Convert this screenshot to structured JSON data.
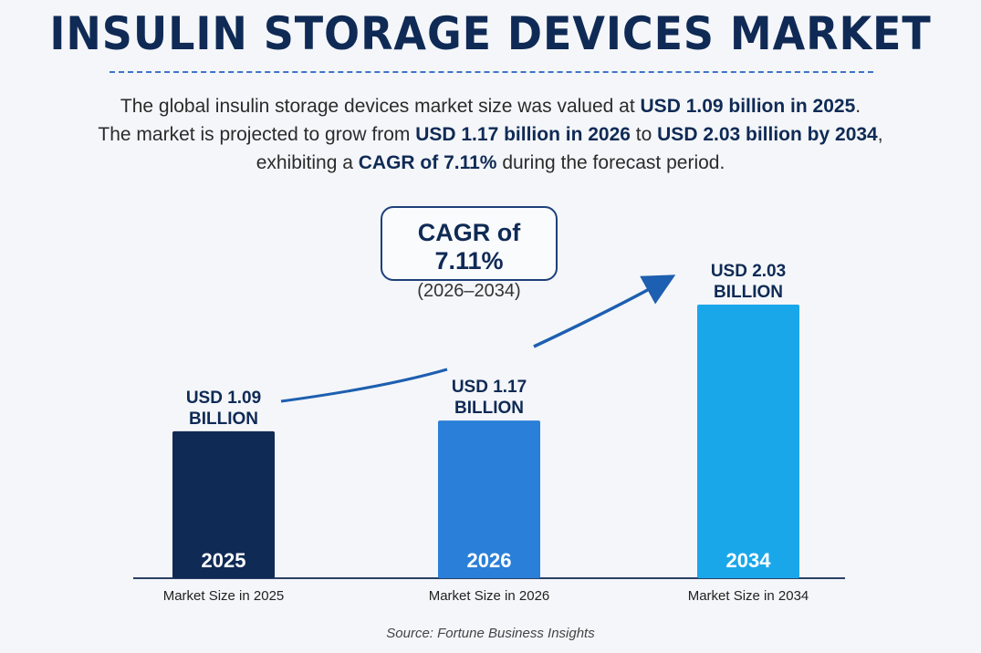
{
  "title": "INSULIN STORAGE DEVICES MARKET",
  "summary": {
    "line1_pre": "The global insulin storage devices market size was valued at ",
    "line1_bold": "USD 1.09 billion in 2025",
    "line1_post": ".",
    "line2_pre": "The market is projected to grow from ",
    "line2_bold1": "USD 1.17 billion in 2026",
    "line2_mid": " to ",
    "line2_bold2": "USD 2.03 billion by 2034",
    "line2_post": ",",
    "line3_pre": "exhibiting a ",
    "line3_bold": "CAGR of 7.11%",
    "line3_post": " during the forecast period."
  },
  "cagr_box": {
    "main": "CAGR of 7.11%",
    "sub": "(2026–2034)"
  },
  "source": "Source: Fortune Business Insights",
  "chart_data": {
    "type": "bar",
    "title": "",
    "xlabel": "",
    "ylabel": "",
    "unit": "USD billion",
    "categories": [
      "2025",
      "2026",
      "2034"
    ],
    "values": [
      1.09,
      1.17,
      2.03
    ],
    "value_labels": [
      [
        "USD 1.09",
        "BILLION"
      ],
      [
        "USD 1.17",
        "BILLION"
      ],
      [
        "USD 2.03",
        "BILLION"
      ]
    ],
    "category_captions": [
      "Market Size in 2025",
      "Market Size in 2026",
      "Market Size in 2034"
    ],
    "colors": [
      "#0f2a55",
      "#2a7fd8",
      "#1aa7ea"
    ],
    "grid": false,
    "legend": "none"
  }
}
